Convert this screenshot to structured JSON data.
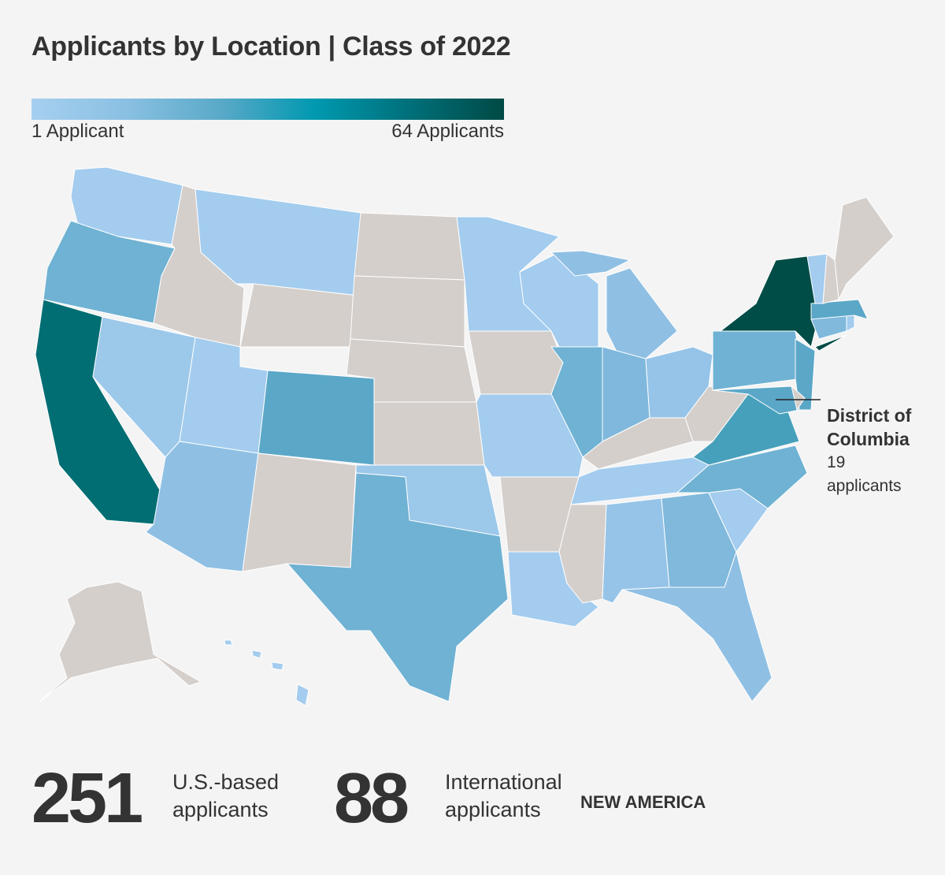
{
  "title": "Applicants by Location | Class of 2022",
  "legend": {
    "min_label": "1 Applicant",
    "max_label": "64 Applicants",
    "min_value": 1,
    "max_value": 64,
    "colors": [
      "#a6cff0",
      "#8ac0e2",
      "#5aa9c8",
      "#0099b0",
      "#00707a",
      "#004a45"
    ]
  },
  "no_data_color": "#d5cfcc",
  "states": {
    "WA": "#a3ccee",
    "OR": "#6fb2d3",
    "CA": "#006e73",
    "NV": "#9cc8ea",
    "ID": "#d5cfcc",
    "MT": "#a3ccee",
    "WY": "#d5cfcc",
    "UT": "#a3ccee",
    "CO": "#5ba7c8",
    "AZ": "#8fc0e4",
    "NM": "#d5cfcc",
    "ND": "#d5cfcc",
    "SD": "#d5cfcc",
    "NE": "#d5cfcc",
    "KS": "#d5cfcc",
    "OK": "#9cc8ea",
    "TX": "#6fb2d3",
    "MN": "#a3ccee",
    "IA": "#d5cfcc",
    "MO": "#a3ccee",
    "AR": "#d5cfcc",
    "LA": "#a3ccee",
    "WI": "#a3ccee",
    "IL": "#6fb2d3",
    "MI": "#8fc0e4",
    "IN": "#7fb8dc",
    "OH": "#96c4e8",
    "KY": "#d5cfcc",
    "TN": "#a3ccee",
    "MS": "#d5cfcc",
    "AL": "#96c4e8",
    "GA": "#80b9dc",
    "FL": "#8fc0e4",
    "SC": "#a3ccee",
    "NC": "#6fb2d3",
    "VA": "#47a0bb",
    "WV": "#d5cfcc",
    "PA": "#6fb2d3",
    "NY": "#004c46",
    "NJ": "#5ba7c8",
    "MD": "#5ba7c8",
    "DE": "#d5cfcc",
    "CT": "#80b9dc",
    "RI": "#a3ccee",
    "MA": "#5ba7c8",
    "VT": "#a3ccee",
    "NH": "#d5cfcc",
    "ME": "#d5cfcc",
    "AK": "#d5cfcc",
    "HI": "#a3ccee"
  },
  "callout": {
    "name": "District of Columbia",
    "count_text": "19 applicants"
  },
  "stats": [
    {
      "value": "251",
      "label_line1": "U.S.-based",
      "label_line2": "applicants"
    },
    {
      "value": "88",
      "label_line1": "International",
      "label_line2": "applicants"
    }
  ],
  "brand": "NEW AMERICA"
}
